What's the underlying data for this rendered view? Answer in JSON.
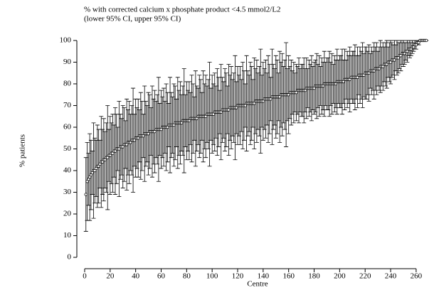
{
  "chart_data": {
    "type": "errorbar",
    "title": "% with corrected calcium x phosphate product <4.5 mmol2/L2",
    "subtitle": "(lower 95% CI, upper 95% CI)",
    "x_label": "Centre",
    "y_label": "% patients",
    "xlim": [
      -3,
      272
    ],
    "ylim": [
      -3,
      105
    ],
    "xticks": [
      0,
      20,
      40,
      60,
      80,
      100,
      120,
      140,
      160,
      180,
      200,
      220,
      240,
      260
    ],
    "yticks": [
      0,
      10,
      20,
      30,
      40,
      50,
      60,
      70,
      80,
      90,
      100
    ],
    "color": "#000000",
    "x": [
      1,
      2,
      3,
      4,
      5,
      6,
      7,
      8,
      9,
      10,
      11,
      12,
      13,
      14,
      15,
      16,
      17,
      18,
      19,
      20,
      21,
      22,
      23,
      24,
      25,
      26,
      27,
      28,
      29,
      30,
      31,
      32,
      33,
      34,
      35,
      36,
      37,
      38,
      39,
      40,
      41,
      42,
      43,
      44,
      45,
      46,
      47,
      48,
      49,
      50,
      51,
      52,
      53,
      54,
      55,
      56,
      57,
      58,
      59,
      60,
      61,
      62,
      63,
      64,
      65,
      66,
      67,
      68,
      69,
      70,
      71,
      72,
      73,
      74,
      75,
      76,
      77,
      78,
      79,
      80,
      81,
      82,
      83,
      84,
      85,
      86,
      87,
      88,
      89,
      90,
      91,
      92,
      93,
      94,
      95,
      96,
      97,
      98,
      99,
      100,
      101,
      102,
      103,
      104,
      105,
      106,
      107,
      108,
      109,
      110,
      111,
      112,
      113,
      114,
      115,
      116,
      117,
      118,
      119,
      120,
      121,
      122,
      123,
      124,
      125,
      126,
      127,
      128,
      129,
      130,
      131,
      132,
      133,
      134,
      135,
      136,
      137,
      138,
      139,
      140,
      141,
      142,
      143,
      144,
      145,
      146,
      147,
      148,
      149,
      150,
      151,
      152,
      153,
      154,
      155,
      156,
      157,
      158,
      159,
      160,
      161,
      162,
      163,
      164,
      165,
      166,
      167,
      168,
      169,
      170,
      171,
      172,
      173,
      174,
      175,
      176,
      177,
      178,
      179,
      180,
      181,
      182,
      183,
      184,
      185,
      186,
      187,
      188,
      189,
      190,
      191,
      192,
      193,
      194,
      195,
      196,
      197,
      198,
      199,
      200,
      201,
      202,
      203,
      204,
      205,
      206,
      207,
      208,
      209,
      210,
      211,
      212,
      213,
      214,
      215,
      216,
      217,
      218,
      219,
      220,
      221,
      222,
      223,
      224,
      225,
      226,
      227,
      228,
      229,
      230,
      231,
      232,
      233,
      234,
      235,
      236,
      237,
      238,
      239,
      240,
      241,
      242,
      243,
      244,
      245,
      246,
      247,
      248,
      249,
      250,
      251,
      252,
      253,
      254,
      255,
      256,
      257,
      258,
      259,
      260,
      261,
      262,
      263,
      264,
      265,
      266,
      267,
      268
    ],
    "values": [
      29,
      35,
      36,
      37,
      38,
      39,
      40,
      40,
      41,
      42,
      42,
      43,
      44,
      44,
      45,
      45,
      46,
      46,
      47,
      47,
      48,
      48,
      49,
      49,
      50,
      50,
      50,
      51,
      51,
      51,
      52,
      52,
      52,
      53,
      53,
      53,
      54,
      54,
      54,
      55,
      55,
      55,
      56,
      56,
      56,
      56,
      57,
      57,
      57,
      57,
      58,
      58,
      58,
      58,
      58,
      59,
      59,
      59,
      59,
      59,
      60,
      60,
      60,
      60,
      60,
      61,
      61,
      61,
      61,
      61,
      62,
      62,
      62,
      62,
      62,
      62,
      63,
      63,
      63,
      63,
      63,
      63,
      64,
      64,
      64,
      64,
      64,
      64,
      65,
      65,
      65,
      65,
      65,
      65,
      65,
      66,
      66,
      66,
      66,
      66,
      66,
      67,
      67,
      67,
      67,
      67,
      67,
      68,
      68,
      68,
      68,
      68,
      68,
      69,
      69,
      69,
      69,
      69,
      69,
      70,
      70,
      70,
      70,
      70,
      70,
      70,
      71,
      71,
      71,
      71,
      71,
      71,
      71,
      72,
      72,
      72,
      72,
      72,
      72,
      72,
      73,
      73,
      73,
      73,
      73,
      73,
      74,
      74,
      74,
      74,
      74,
      74,
      74,
      75,
      75,
      75,
      75,
      75,
      75,
      75,
      76,
      76,
      76,
      76,
      76,
      76,
      77,
      77,
      77,
      77,
      77,
      77,
      77,
      78,
      78,
      78,
      78,
      78,
      78,
      78,
      79,
      79,
      79,
      79,
      79,
      79,
      79,
      80,
      80,
      80,
      80,
      80,
      80,
      80,
      80,
      80,
      80,
      81,
      81,
      81,
      81,
      81,
      81,
      82,
      82,
      82,
      82,
      82,
      83,
      83,
      83,
      83,
      83,
      83,
      84,
      84,
      84,
      84,
      84,
      85,
      85,
      85,
      85,
      86,
      86,
      86,
      86,
      87,
      87,
      87,
      87,
      88,
      88,
      88,
      89,
      89,
      89,
      90,
      90,
      90,
      91,
      91,
      91,
      92,
      92,
      92,
      93,
      93,
      94,
      94,
      94,
      95,
      95,
      96,
      96,
      96,
      97,
      97,
      98,
      98,
      99,
      99,
      100,
      100,
      100,
      100,
      100,
      100
    ],
    "errors": [
      17,
      18,
      12,
      20,
      16,
      10,
      22,
      15,
      13,
      19,
      17,
      11,
      21,
      15,
      19,
      13,
      16,
      24,
      12,
      18,
      14,
      18,
      12,
      20,
      16,
      10,
      22,
      15,
      13,
      19,
      17,
      11,
      21,
      15,
      19,
      13,
      16,
      24,
      12,
      18,
      14,
      18,
      12,
      20,
      16,
      10,
      22,
      15,
      13,
      19,
      17,
      11,
      21,
      15,
      19,
      13,
      16,
      24,
      12,
      18,
      14,
      18,
      12,
      20,
      16,
      10,
      22,
      15,
      13,
      19,
      17,
      11,
      21,
      15,
      19,
      13,
      16,
      24,
      12,
      18,
      14,
      18,
      12,
      20,
      16,
      10,
      22,
      15,
      13,
      19,
      17,
      11,
      21,
      15,
      19,
      13,
      16,
      24,
      12,
      18,
      14,
      18,
      12,
      20,
      16,
      10,
      22,
      15,
      13,
      19,
      17,
      11,
      21,
      15,
      19,
      13,
      16,
      24,
      12,
      18,
      14,
      18,
      12,
      20,
      16,
      10,
      22,
      15,
      13,
      19,
      17,
      11,
      21,
      15,
      19,
      13,
      16,
      24,
      12,
      18,
      14,
      18,
      12,
      20,
      16,
      10,
      22,
      15,
      13,
      19,
      17,
      11,
      21,
      15,
      19,
      13,
      16,
      24,
      12,
      18,
      12,
      15,
      10,
      14,
      9,
      13,
      11,
      15,
      10,
      12,
      12,
      15,
      10,
      14,
      9,
      13,
      11,
      15,
      10,
      12,
      12,
      15,
      10,
      14,
      9,
      13,
      11,
      15,
      10,
      12,
      12,
      15,
      10,
      14,
      9,
      13,
      11,
      15,
      10,
      12,
      12,
      15,
      10,
      14,
      9,
      13,
      11,
      15,
      10,
      12,
      12,
      15,
      10,
      14,
      9,
      13,
      11,
      15,
      10,
      12,
      12,
      10,
      13,
      8,
      11,
      9,
      13,
      10,
      12,
      8,
      10,
      12,
      9,
      11,
      8,
      10,
      11,
      7,
      9,
      10,
      8,
      7,
      9,
      6,
      8,
      7,
      6,
      7,
      5,
      6,
      5,
      4,
      5,
      3,
      4,
      3,
      3,
      2,
      2,
      2,
      1,
      1,
      0,
      0,
      0,
      0,
      0,
      0
    ]
  }
}
